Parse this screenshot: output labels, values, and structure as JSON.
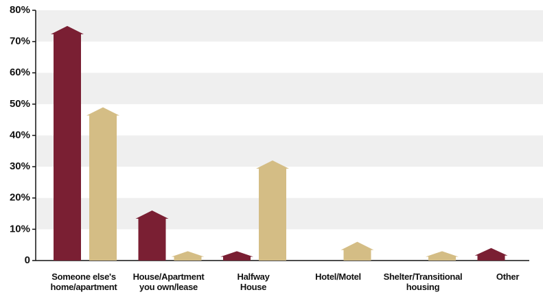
{
  "chart_data": {
    "type": "house-bar",
    "categories": [
      "Someone else's\nhome/apartment",
      "House/Apartment\nyou own/lease",
      "Halfway\nHouse",
      "Hotel/Motel",
      "Shelter/Transitional\nhousing",
      "Other"
    ],
    "series": [
      {
        "color": "#7a1f33",
        "values": [
          75,
          16,
          3,
          0,
          0,
          4
        ]
      },
      {
        "color": "#d4bd85",
        "values": [
          49,
          3,
          32,
          6,
          3,
          0
        ]
      }
    ],
    "ylim": [
      0,
      80
    ],
    "yticks": [
      0,
      {
        "value": 10,
        "label": "10%"
      },
      {
        "value": 20,
        "label": "20%"
      },
      {
        "value": 30,
        "label": "30%"
      },
      {
        "value": 40,
        "label": "40%"
      },
      {
        "value": 50,
        "label": "50%"
      },
      {
        "value": 60,
        "label": "60%"
      },
      {
        "value": 70,
        "label": "70%"
      },
      {
        "value": 80,
        "label": "80%"
      }
    ],
    "grid": true
  }
}
